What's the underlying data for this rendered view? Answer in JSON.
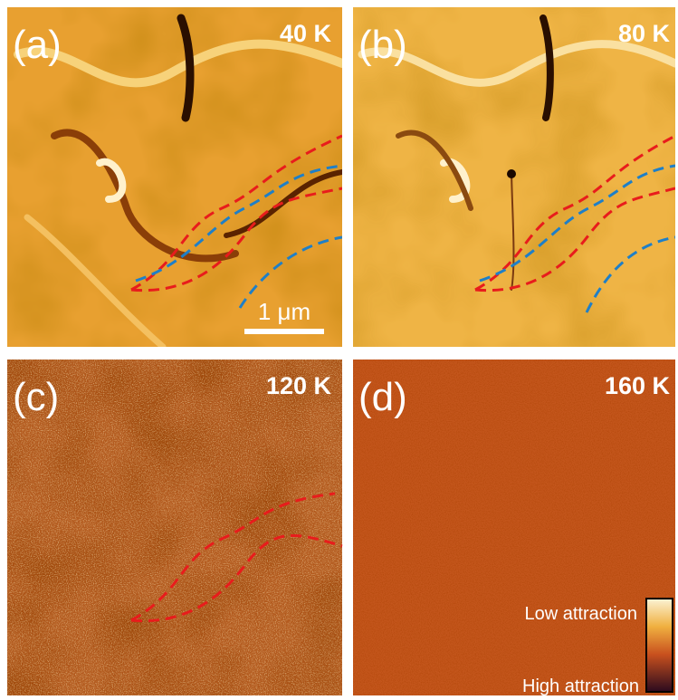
{
  "panels": [
    {
      "label": "(a)",
      "temperature": "40 K"
    },
    {
      "label": "(b)",
      "temperature": "80 K"
    },
    {
      "label": "(c)",
      "temperature": "120 K"
    },
    {
      "label": "(d)",
      "temperature": "160 K"
    }
  ],
  "scale_bar": "1 μm",
  "colorbar": {
    "low": "Low attraction",
    "high": "High attraction"
  }
}
